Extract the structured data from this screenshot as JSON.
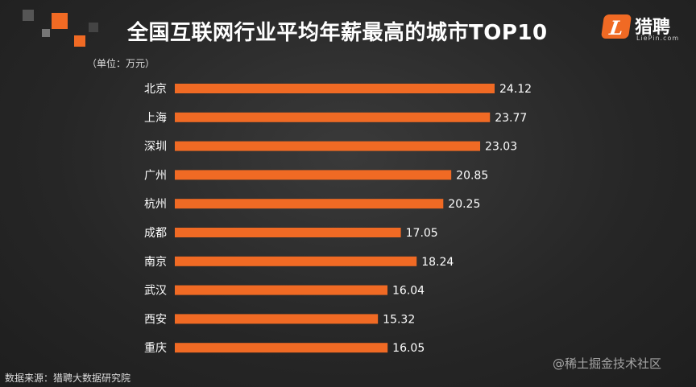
{
  "header": {
    "title": "全国互联网行业平均年薪最高的城市TOP10",
    "unit_label": "（单位：万元）"
  },
  "brand": {
    "mark": "L",
    "name_cn": "猎聘",
    "name_en": "LiePin.com"
  },
  "footer": {
    "source": "数据来源：猎聘大数据研究院",
    "watermark": "@稀土掘金技术社区"
  },
  "colors": {
    "bar": "#f06a24",
    "background": "#2a2a2a",
    "text": "#ffffff"
  },
  "chart_data": {
    "type": "bar",
    "orientation": "horizontal",
    "title": "全国互联网行业平均年薪最高的城市TOP10",
    "unit": "万元",
    "categories": [
      "北京",
      "上海",
      "深圳",
      "广州",
      "杭州",
      "成都",
      "南京",
      "武汉",
      "西安",
      "重庆"
    ],
    "values": [
      24.12,
      23.77,
      23.03,
      20.85,
      20.25,
      17.05,
      18.24,
      16.04,
      15.32,
      16.05
    ],
    "value_labels": [
      "24.12",
      "23.77",
      "23.03",
      "20.85",
      "20.25",
      "17.05",
      "18.24",
      "16.04",
      "15.32",
      "16.05"
    ],
    "xlim": [
      0,
      24.12
    ],
    "grid": false,
    "legend": false
  }
}
